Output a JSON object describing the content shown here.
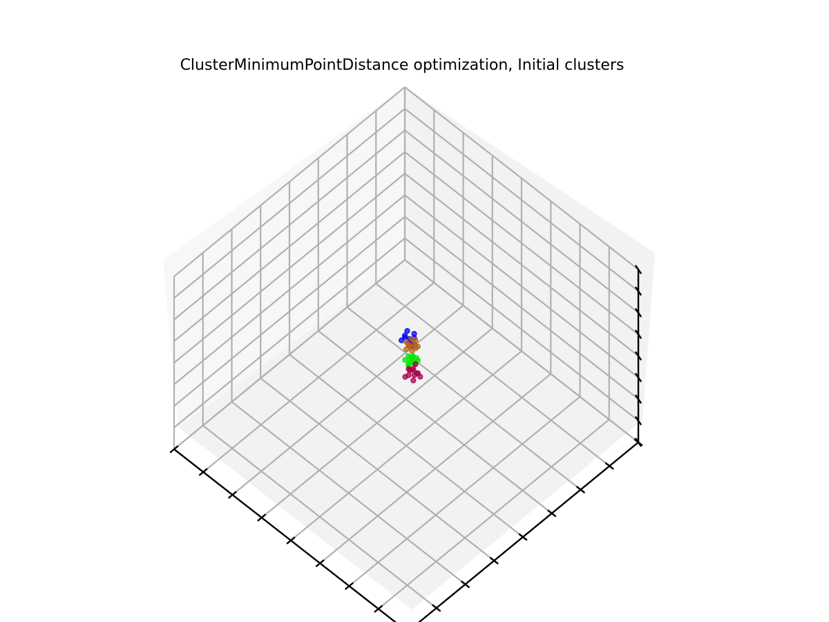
{
  "chart_data": {
    "type": "scatter",
    "projection": "3d",
    "title": "ClusterMinimumPointDistance optimization, Initial clusters",
    "xlabel": "",
    "ylabel": "",
    "zlabel": "",
    "xlim": [
      -10,
      10
    ],
    "ylim": [
      -10,
      10
    ],
    "zlim": [
      -10,
      10
    ],
    "grid": true,
    "tick_labels": "hidden",
    "view": {
      "elevation_deg": 45,
      "azimuth_deg": 45
    },
    "series": [
      {
        "color": "#0000ff",
        "points": [
          {
            "x": -0.6,
            "y": 0.9,
            "z": 0.4
          },
          {
            "x": -0.9,
            "y": 1.2,
            "z": 0.1
          },
          {
            "x": -0.4,
            "y": 0.6,
            "z": 0.8
          },
          {
            "x": -1.1,
            "y": 1.0,
            "z": 0.5
          },
          {
            "x": -0.7,
            "y": 1.4,
            "z": 0.2
          },
          {
            "x": -0.3,
            "y": 0.8,
            "z": 0.3
          },
          {
            "x": -0.8,
            "y": 0.7,
            "z": 0.9
          },
          {
            "x": -1.2,
            "y": 1.3,
            "z": 0.6
          },
          {
            "x": -0.5,
            "y": 1.1,
            "z": 0.0
          },
          {
            "x": -0.9,
            "y": 0.5,
            "z": 0.7
          },
          {
            "x": -0.2,
            "y": 0.9,
            "z": 0.5
          },
          {
            "x": -0.6,
            "y": 1.3,
            "z": 0.9
          }
        ]
      },
      {
        "color": "#b8651e",
        "points": [
          {
            "x": 0.2,
            "y": 0.1,
            "z": 1.6
          },
          {
            "x": 0.4,
            "y": 0.3,
            "z": 1.9
          },
          {
            "x": 0.0,
            "y": 0.2,
            "z": 1.4
          },
          {
            "x": 0.3,
            "y": -0.1,
            "z": 2.1
          },
          {
            "x": 0.6,
            "y": 0.2,
            "z": 1.7
          },
          {
            "x": 0.1,
            "y": 0.4,
            "z": 2.0
          },
          {
            "x": 0.5,
            "y": 0.0,
            "z": 1.5
          },
          {
            "x": -0.1,
            "y": 0.1,
            "z": 1.8
          },
          {
            "x": 0.3,
            "y": 0.5,
            "z": 1.3
          },
          {
            "x": 0.7,
            "y": 0.3,
            "z": 1.9
          },
          {
            "x": 0.2,
            "y": -0.2,
            "z": 1.6
          },
          {
            "x": 0.4,
            "y": 0.4,
            "z": 2.2
          }
        ]
      },
      {
        "color": "#00e600",
        "points": [
          {
            "x": 0.0,
            "y": 0.3,
            "z": -0.4
          },
          {
            "x": 0.2,
            "y": 0.5,
            "z": -0.7
          },
          {
            "x": -0.2,
            "y": 0.4,
            "z": -0.3
          },
          {
            "x": 0.1,
            "y": 0.1,
            "z": -0.6
          },
          {
            "x": 0.3,
            "y": 0.6,
            "z": -0.2
          },
          {
            "x": -0.1,
            "y": 0.7,
            "z": -0.5
          },
          {
            "x": 0.0,
            "y": 0.2,
            "z": -0.9
          },
          {
            "x": 0.4,
            "y": 0.3,
            "z": -0.4
          },
          {
            "x": -0.3,
            "y": 0.2,
            "z": -0.6
          },
          {
            "x": 0.2,
            "y": 0.8,
            "z": -0.8
          },
          {
            "x": 0.1,
            "y": 0.4,
            "z": -0.1
          },
          {
            "x": -0.1,
            "y": 0.5,
            "z": -1.0
          }
        ]
      },
      {
        "color": "#a8004e",
        "points": [
          {
            "x": 0.9,
            "y": -0.3,
            "z": 0.2
          },
          {
            "x": 1.2,
            "y": -0.5,
            "z": 0.0
          },
          {
            "x": 0.8,
            "y": -0.6,
            "z": 0.4
          },
          {
            "x": 1.1,
            "y": -0.2,
            "z": -0.2
          },
          {
            "x": 1.4,
            "y": -0.4,
            "z": 0.3
          },
          {
            "x": 1.0,
            "y": -0.8,
            "z": 0.1
          },
          {
            "x": 0.7,
            "y": -0.4,
            "z": -0.1
          },
          {
            "x": 1.3,
            "y": -0.7,
            "z": -0.3
          },
          {
            "x": 0.9,
            "y": -0.1,
            "z": 0.5
          },
          {
            "x": 1.1,
            "y": -0.6,
            "z": 0.6
          },
          {
            "x": 1.5,
            "y": -0.3,
            "z": -0.1
          },
          {
            "x": 0.8,
            "y": -0.9,
            "z": -0.2
          }
        ]
      }
    ]
  }
}
